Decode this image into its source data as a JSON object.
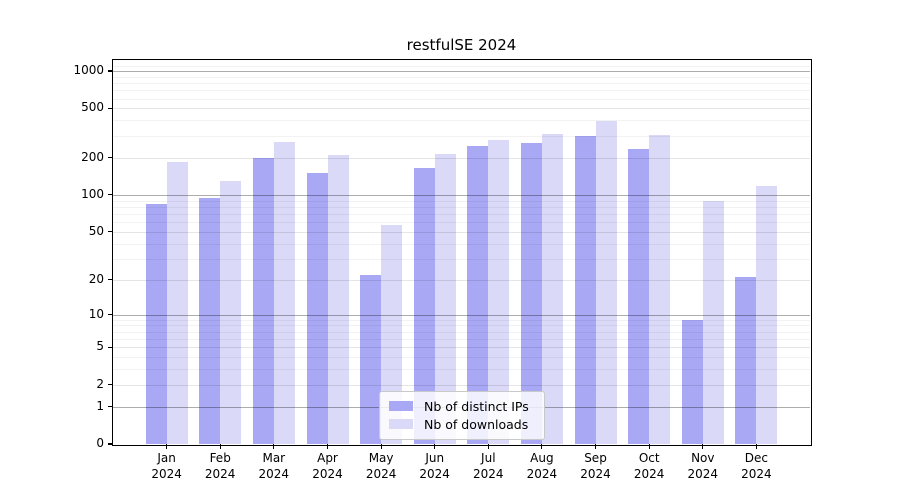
{
  "chart_data": {
    "type": "bar",
    "title": "restfulSE 2024",
    "categories": [
      "Jan 2024",
      "Feb 2024",
      "Mar 2024",
      "Apr 2024",
      "May 2024",
      "Jun 2024",
      "Jul 2024",
      "Aug 2024",
      "Sep 2024",
      "Oct 2024",
      "Nov 2024",
      "Dec 2024"
    ],
    "series": [
      {
        "name": "Nb of distinct IPs",
        "color": "#a8a8f5",
        "values": [
          85,
          95,
          200,
          150,
          22,
          165,
          250,
          262,
          300,
          235,
          9,
          21
        ]
      },
      {
        "name": "Nb of downloads",
        "color": "#dadaf8",
        "values": [
          183,
          130,
          268,
          210,
          57,
          214,
          277,
          312,
          395,
          308,
          90,
          118
        ]
      }
    ],
    "xlabel": "",
    "ylabel": "",
    "yscale": "log1p",
    "yticks": [
      0,
      1,
      2,
      5,
      10,
      20,
      50,
      100,
      200,
      500,
      1000
    ],
    "minor_yticks": [
      3,
      4,
      6,
      7,
      8,
      9,
      30,
      40,
      60,
      70,
      80,
      90,
      300,
      400,
      600,
      700,
      800,
      900,
      1100
    ],
    "decade_ticks": [
      1,
      10,
      100,
      1000
    ],
    "ylim": [
      0,
      1226
    ],
    "grid": true,
    "legend_position": "lower center inside"
  }
}
